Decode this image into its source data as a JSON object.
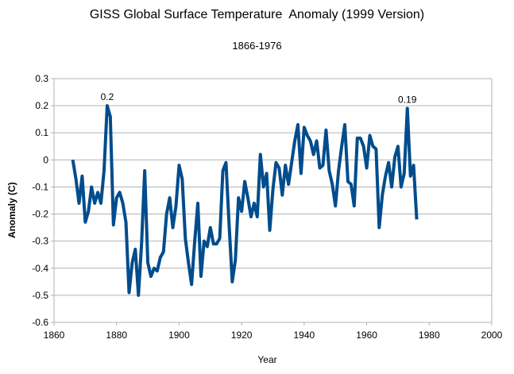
{
  "chart_data": {
    "type": "line",
    "title": "GISS Global Surface Temperature  Anomaly (1999 Version)",
    "subtitle": "1866-1976",
    "xlabel": "Year",
    "ylabel": "Anomaly (C)",
    "xlim": [
      1860,
      2000
    ],
    "ylim": [
      -0.6,
      0.3
    ],
    "x_ticks": [
      "1860",
      "1880",
      "1900",
      "1920",
      "1940",
      "1960",
      "1980",
      "2000"
    ],
    "y_ticks": [
      "0.3",
      "0.2",
      "0.1",
      "0",
      "-0.1",
      "-0.2",
      "-0.3",
      "-0.4",
      "-0.5",
      "-0.6"
    ],
    "grid": "horizontal",
    "legend": "none",
    "series": [
      {
        "color": "#004c8c",
        "x": [
          1866,
          1867,
          1868,
          1869,
          1870,
          1871,
          1872,
          1873,
          1874,
          1875,
          1876,
          1877,
          1878,
          1879,
          1880,
          1881,
          1882,
          1883,
          1884,
          1885,
          1886,
          1887,
          1888,
          1889,
          1890,
          1891,
          1892,
          1893,
          1894,
          1895,
          1896,
          1897,
          1898,
          1899,
          1900,
          1901,
          1902,
          1903,
          1904,
          1905,
          1906,
          1907,
          1908,
          1909,
          1910,
          1911,
          1912,
          1913,
          1914,
          1915,
          1916,
          1917,
          1918,
          1919,
          1920,
          1921,
          1922,
          1923,
          1924,
          1925,
          1926,
          1927,
          1928,
          1929,
          1930,
          1931,
          1932,
          1933,
          1934,
          1935,
          1936,
          1937,
          1938,
          1939,
          1940,
          1941,
          1942,
          1943,
          1944,
          1945,
          1946,
          1947,
          1948,
          1949,
          1950,
          1951,
          1952,
          1953,
          1954,
          1955,
          1956,
          1957,
          1958,
          1959,
          1960,
          1961,
          1962,
          1963,
          1964,
          1965,
          1966,
          1967,
          1968,
          1969,
          1970,
          1971,
          1972,
          1973,
          1974,
          1975,
          1976
        ],
        "values": [
          0.0,
          -0.07,
          -0.16,
          -0.06,
          -0.23,
          -0.19,
          -0.1,
          -0.16,
          -0.12,
          -0.16,
          -0.04,
          0.2,
          0.16,
          -0.24,
          -0.14,
          -0.12,
          -0.16,
          -0.23,
          -0.49,
          -0.38,
          -0.33,
          -0.5,
          -0.31,
          -0.04,
          -0.38,
          -0.43,
          -0.4,
          -0.41,
          -0.36,
          -0.34,
          -0.2,
          -0.14,
          -0.25,
          -0.17,
          -0.02,
          -0.07,
          -0.29,
          -0.38,
          -0.46,
          -0.3,
          -0.16,
          -0.43,
          -0.3,
          -0.32,
          -0.25,
          -0.31,
          -0.31,
          -0.29,
          -0.04,
          -0.01,
          -0.24,
          -0.45,
          -0.37,
          -0.14,
          -0.19,
          -0.08,
          -0.14,
          -0.21,
          -0.16,
          -0.21,
          0.02,
          -0.1,
          -0.05,
          -0.26,
          -0.11,
          -0.01,
          -0.03,
          -0.13,
          -0.02,
          -0.09,
          -0.01,
          0.07,
          0.13,
          -0.05,
          0.12,
          0.09,
          0.07,
          0.02,
          0.07,
          -0.03,
          -0.02,
          0.11,
          -0.04,
          -0.09,
          -0.17,
          -0.04,
          0.05,
          0.13,
          -0.08,
          -0.09,
          -0.17,
          0.08,
          0.08,
          0.05,
          -0.03,
          0.09,
          0.05,
          0.04,
          -0.25,
          -0.13,
          -0.06,
          -0.01,
          -0.1,
          0.01,
          0.05,
          -0.1,
          -0.05,
          0.19,
          -0.06,
          -0.02,
          -0.22
        ]
      }
    ],
    "annotations": [
      {
        "x": 1877,
        "y": 0.2,
        "text": "0.2"
      },
      {
        "x": 1973,
        "y": 0.19,
        "text": "0.19"
      }
    ]
  }
}
